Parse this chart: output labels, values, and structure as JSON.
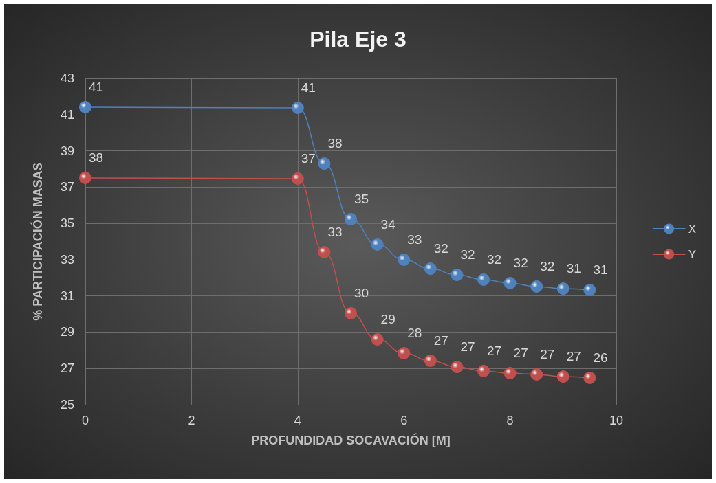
{
  "chart_data": {
    "type": "line",
    "title": "Pila Eje 3",
    "xlabel": "PROFUNDIDAD SOCAVACIÓN [M]",
    "ylabel": "% PARTICIPACIÓN MASAS",
    "x": [
      0,
      4,
      4.5,
      5,
      5.5,
      6,
      6.5,
      7,
      7.5,
      8,
      8.5,
      9,
      9.5
    ],
    "series": [
      {
        "name": "X",
        "color": "#4f81bd",
        "values": [
          41.41,
          41.37,
          38.3,
          35.23,
          33.83,
          33.0,
          32.5,
          32.16,
          31.9,
          31.71,
          31.52,
          31.4,
          31.33
        ],
        "value_labels": [
          "41",
          "41",
          "38",
          "35",
          "34",
          "33",
          "32",
          "32",
          "32",
          "32",
          "32",
          "31",
          "31"
        ]
      },
      {
        "name": "Y",
        "color": "#c0504d",
        "values": [
          37.51,
          37.47,
          33.41,
          30.04,
          28.6,
          27.84,
          27.43,
          27.08,
          26.86,
          26.74,
          26.67,
          26.55,
          26.48
        ],
        "value_labels": [
          "38",
          "37",
          "33",
          "30",
          "29",
          "28",
          "27",
          "27",
          "27",
          "27",
          "27",
          "27",
          "26"
        ]
      }
    ],
    "xlim": [
      0,
      10
    ],
    "xticks": [
      0,
      2,
      4,
      6,
      8,
      10
    ],
    "ylim": [
      25,
      43
    ],
    "yticks": [
      25,
      27,
      29,
      31,
      33,
      35,
      37,
      39,
      41,
      43
    ],
    "grid": true,
    "legend": "right",
    "marker": "circle",
    "line_style": "solid"
  }
}
